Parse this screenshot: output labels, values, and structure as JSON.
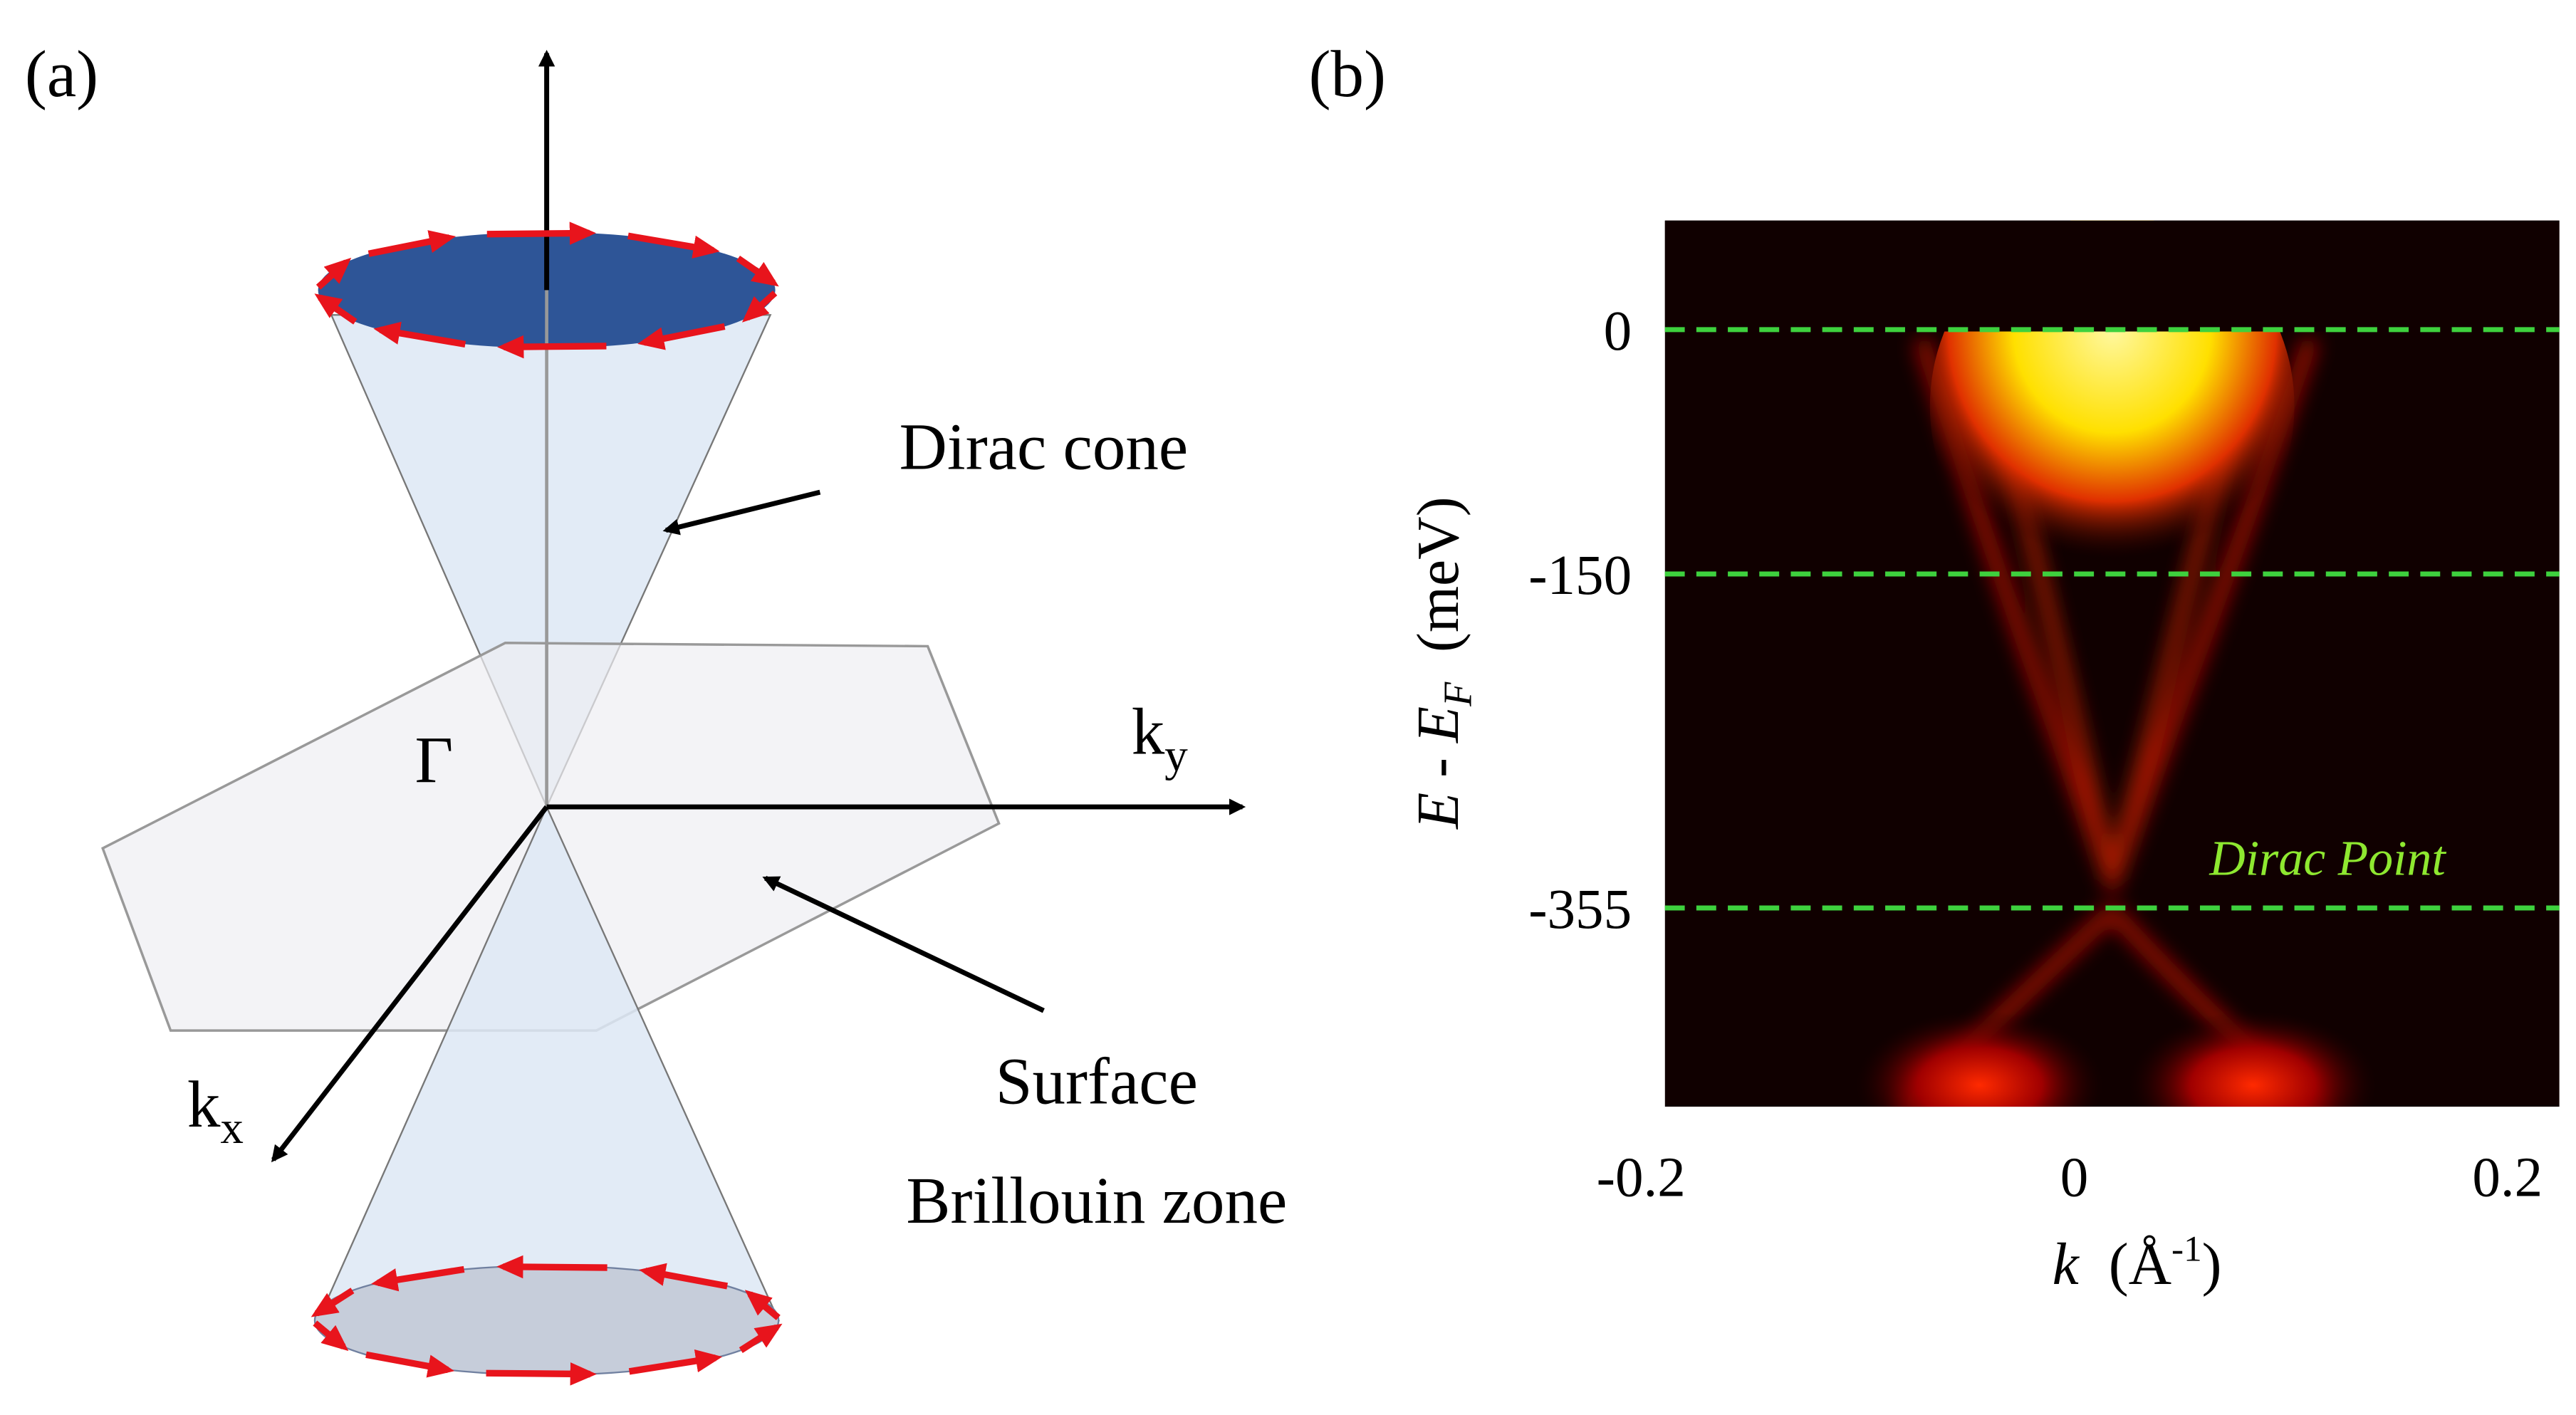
{
  "panel_a": {
    "label": "(a)",
    "dirac_cone": "Dirac cone",
    "gamma": "Γ",
    "k": "k",
    "ky_sub": "y",
    "kx_sub": "x",
    "surface": "Surface",
    "brillouin_zone": "Brillouin zone"
  },
  "panel_b": {
    "label": "(b)",
    "ylim": [
      -477,
      67
    ],
    "yticks": [
      0,
      -150,
      -355
    ],
    "xlim": [
      -0.189,
      0.224
    ],
    "xticks": [
      -0.2,
      0,
      0.2
    ],
    "ylabel": {
      "main": "E - E",
      "sub": "F",
      "unit": "(meV)"
    },
    "xlabel": {
      "main": "k",
      "unit": "(Å",
      "sup": "-1",
      "close": ")"
    },
    "annotation": "Dirac Point"
  }
}
